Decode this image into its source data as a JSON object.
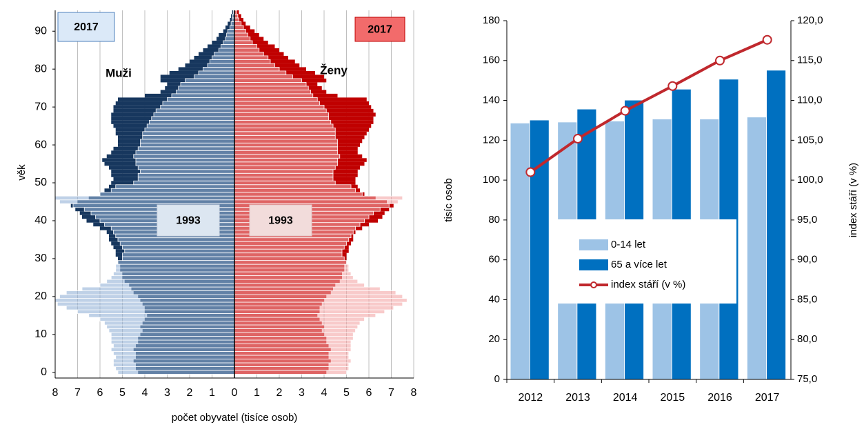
{
  "chart_data": [
    {
      "type": "pyramid",
      "ylabel": "věk",
      "xlabel": "počet obyvatel (tisíce osob)",
      "ages": [
        0,
        1,
        2,
        3,
        4,
        5,
        6,
        7,
        8,
        9,
        10,
        11,
        12,
        13,
        14,
        15,
        16,
        17,
        18,
        19,
        20,
        21,
        22,
        23,
        24,
        25,
        26,
        27,
        28,
        29,
        30,
        31,
        32,
        33,
        34,
        35,
        36,
        37,
        38,
        39,
        40,
        41,
        42,
        43,
        44,
        45,
        46,
        47,
        48,
        49,
        50,
        51,
        52,
        53,
        54,
        55,
        56,
        57,
        58,
        59,
        60,
        61,
        62,
        63,
        64,
        65,
        66,
        67,
        68,
        69,
        70,
        71,
        72,
        73,
        74,
        75,
        76,
        77,
        78,
        79,
        80,
        81,
        82,
        83,
        84,
        85,
        86,
        87,
        88,
        89,
        90,
        91,
        92,
        93,
        94,
        95
      ],
      "ylim": [
        -1.5,
        95.5
      ],
      "yticks": [
        0,
        10,
        20,
        30,
        40,
        50,
        60,
        70,
        80,
        90
      ],
      "xlim": [
        0,
        8
      ],
      "xticks": [
        0,
        1,
        2,
        3,
        4,
        5,
        6,
        7,
        8
      ],
      "grid": true,
      "left": {
        "label": "Muži",
        "series": [
          {
            "name": "2017",
            "color": "#17375e",
            "values": [
              4.3,
              4.4,
              4.4,
              4.5,
              4.4,
              4.4,
              4.5,
              4.4,
              4.3,
              4.3,
              4.2,
              4.1,
              4.2,
              4.1,
              4.0,
              3.9,
              4.0,
              4.0,
              4.1,
              4.2,
              4.3,
              4.5,
              4.6,
              4.7,
              4.9,
              5.0,
              5.0,
              5.1,
              5.1,
              5.2,
              5.2,
              5.3,
              5.3,
              5.4,
              5.5,
              5.6,
              5.6,
              5.7,
              6.0,
              6.3,
              6.6,
              6.8,
              6.9,
              7.1,
              7.3,
              7.0,
              6.5,
              6.0,
              5.8,
              5.6,
              5.5,
              5.4,
              5.5,
              5.5,
              5.6,
              5.8,
              5.9,
              5.7,
              5.5,
              5.4,
              5.2,
              5.2,
              5.2,
              5.3,
              5.3,
              5.4,
              5.5,
              5.5,
              5.5,
              5.4,
              5.4,
              5.3,
              5.2,
              4.0,
              3.3,
              3.1,
              3.0,
              3.3,
              3.3,
              2.9,
              2.5,
              2.2,
              2.0,
              1.8,
              1.6,
              1.4,
              1.2,
              1.0,
              0.8,
              0.7,
              0.5,
              0.4,
              0.3,
              0.2,
              0.15,
              0.1
            ]
          },
          {
            "name": "1993",
            "color": "#95b3d7",
            "values": [
              5.2,
              5.3,
              5.4,
              5.4,
              5.3,
              5.4,
              5.5,
              5.4,
              5.5,
              5.5,
              5.5,
              5.6,
              5.7,
              5.8,
              6.0,
              6.5,
              7.0,
              7.5,
              7.9,
              8.0,
              7.8,
              7.5,
              6.8,
              6.0,
              5.7,
              5.5,
              5.4,
              5.3,
              5.3,
              5.2,
              5.0,
              5.0,
              4.9,
              5.0,
              5.1,
              5.2,
              5.3,
              5.4,
              5.5,
              5.8,
              6.0,
              6.2,
              6.4,
              6.7,
              7.2,
              7.8,
              8.0,
              6.0,
              5.5,
              5.3,
              4.5,
              4.3,
              4.3,
              4.2,
              4.3,
              4.4,
              4.4,
              4.5,
              4.4,
              4.3,
              4.2,
              4.2,
              4.1,
              4.1,
              4.0,
              3.9,
              3.8,
              3.7,
              3.6,
              3.5,
              3.3,
              3.2,
              3.0,
              2.8,
              2.6,
              2.5,
              2.4,
              2.2,
              1.8,
              1.6,
              1.4,
              1.2,
              1.1,
              1.0,
              0.9,
              0.7,
              0.6,
              0.5,
              0.4,
              0.35,
              0.3,
              0.2,
              0.15,
              0.1,
              0.08,
              0.05
            ]
          }
        ]
      },
      "right": {
        "label": "Ženy",
        "series": [
          {
            "name": "2017",
            "color": "#c00000",
            "values": [
              4.1,
              4.2,
              4.2,
              4.3,
              4.2,
              4.2,
              4.3,
              4.2,
              4.1,
              4.1,
              4.0,
              3.9,
              4.0,
              3.9,
              3.8,
              3.7,
              3.8,
              3.8,
              3.9,
              4.0,
              4.1,
              4.3,
              4.4,
              4.5,
              4.7,
              4.8,
              4.8,
              4.9,
              4.9,
              5.0,
              5.0,
              5.0,
              5.1,
              5.1,
              5.2,
              5.3,
              5.3,
              5.4,
              5.7,
              6.0,
              6.4,
              6.6,
              6.7,
              6.9,
              7.1,
              6.8,
              6.3,
              5.8,
              5.6,
              5.5,
              5.4,
              5.4,
              5.5,
              5.5,
              5.6,
              5.8,
              5.9,
              5.7,
              5.5,
              5.5,
              5.6,
              5.7,
              5.8,
              5.9,
              6.0,
              6.1,
              6.2,
              6.2,
              6.3,
              6.2,
              6.1,
              6.0,
              5.9,
              4.6,
              4.1,
              3.9,
              3.7,
              4.1,
              4.0,
              3.6,
              3.2,
              2.9,
              2.7,
              2.4,
              2.2,
              2.0,
              1.8,
              1.5,
              1.3,
              1.1,
              0.9,
              0.7,
              0.5,
              0.4,
              0.3,
              0.2
            ]
          },
          {
            "name": "1993",
            "color": "#f4a7a7",
            "values": [
              5.0,
              5.1,
              5.1,
              5.2,
              5.1,
              5.1,
              5.2,
              5.2,
              5.2,
              5.3,
              5.3,
              5.4,
              5.5,
              5.6,
              5.8,
              6.3,
              6.7,
              7.1,
              7.5,
              7.7,
              7.5,
              7.2,
              6.5,
              5.8,
              5.5,
              5.3,
              5.2,
              5.1,
              5.1,
              5.0,
              4.9,
              4.8,
              4.8,
              4.9,
              5.0,
              5.1,
              5.2,
              5.3,
              5.4,
              5.6,
              5.8,
              6.0,
              6.2,
              6.5,
              6.9,
              7.3,
              7.5,
              5.7,
              5.4,
              5.2,
              4.5,
              4.4,
              4.4,
              4.4,
              4.5,
              4.6,
              4.6,
              4.7,
              4.6,
              4.6,
              4.6,
              4.6,
              4.5,
              4.5,
              4.5,
              4.4,
              4.3,
              4.2,
              4.2,
              4.1,
              4.0,
              3.8,
              3.7,
              3.5,
              3.4,
              3.3,
              3.2,
              3.0,
              2.6,
              2.3,
              2.0,
              1.8,
              1.6,
              1.5,
              1.3,
              1.1,
              1.0,
              0.8,
              0.7,
              0.6,
              0.5,
              0.4,
              0.3,
              0.2,
              0.15,
              0.1
            ]
          }
        ]
      }
    },
    {
      "type": "bar_line",
      "categories": [
        "2012",
        "2013",
        "2014",
        "2015",
        "2016",
        "2017"
      ],
      "ylabel": "tisíc osob",
      "y2label": "index stáří (v %)",
      "ylim": [
        0,
        180
      ],
      "yticks": [
        0,
        20,
        40,
        60,
        80,
        100,
        120,
        140,
        160,
        180
      ],
      "y2lim": [
        75,
        120
      ],
      "y2ticks": [
        {
          "value": 75,
          "label": "75,0"
        },
        {
          "value": 80,
          "label": "80,0"
        },
        {
          "value": 85,
          "label": "85,0"
        },
        {
          "value": 90,
          "label": "90,0"
        },
        {
          "value": 95,
          "label": "95,0"
        },
        {
          "value": 100,
          "label": "100,0"
        },
        {
          "value": 105,
          "label": "105,0"
        },
        {
          "value": 110,
          "label": "110,0"
        },
        {
          "value": 115,
          "label": "115,0"
        },
        {
          "value": 120,
          "label": "120,0"
        }
      ],
      "series": [
        {
          "name": "0-14 let",
          "kind": "bar",
          "color": "#9dc3e6",
          "values": [
            128.5,
            129,
            129.5,
            130.5,
            130.5,
            131.5
          ]
        },
        {
          "name": "65 a více let",
          "kind": "bar",
          "color": "#0070c0",
          "values": [
            130,
            135.5,
            140,
            145.5,
            150.5,
            155
          ]
        },
        {
          "name": "index stáří (v %)",
          "kind": "line",
          "axis": "y2",
          "color": "#c0282d",
          "values": [
            101.0,
            105.2,
            108.7,
            111.8,
            115.0,
            117.6
          ]
        }
      ]
    }
  ]
}
